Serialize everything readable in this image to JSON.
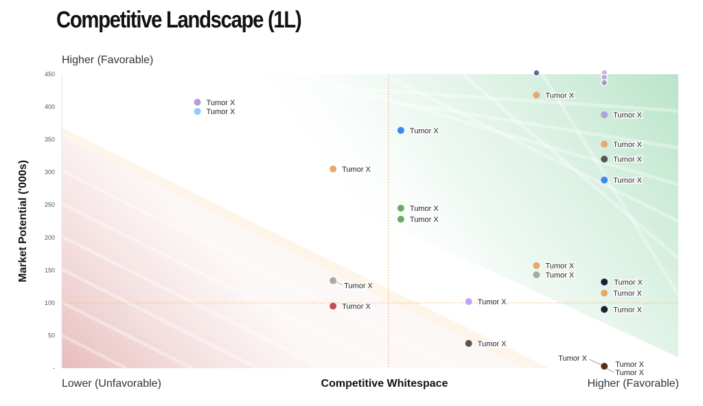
{
  "chart_data": {
    "type": "scatter",
    "title": "Competitive Landscape (1L)",
    "ylabel": "Market Potential ('000s)",
    "xlabel": "Competitive Whitespace",
    "y_top_label": "Higher (Favorable)",
    "x_left_label": "Lower (Unfavorable)",
    "x_right_label": "Higher (Favorable)",
    "ylim": [
      0,
      450
    ],
    "yticks": [
      50,
      100,
      150,
      200,
      250,
      300,
      350,
      400,
      450
    ],
    "ytick_labels": [
      "50",
      "100",
      "150",
      "200",
      "250",
      "300",
      "350",
      "400",
      "450"
    ],
    "y_min_label": "-",
    "xlim": [
      0,
      10
    ],
    "reference_lines": {
      "x": 5.3,
      "y": 100
    },
    "grid": false,
    "points": [
      {
        "x": 2.2,
        "y": 407,
        "label": "Tumor X",
        "color": "#b39ddb"
      },
      {
        "x": 2.2,
        "y": 393,
        "label": "Tumor X",
        "color": "#90caf9"
      },
      {
        "x": 4.4,
        "y": 305,
        "label": "Tumor X",
        "color": "#e8a86a"
      },
      {
        "x": 5.5,
        "y": 364,
        "label": "Tumor X",
        "color": "#4285f4"
      },
      {
        "x": 5.5,
        "y": 245,
        "label": "Tumor X",
        "color": "#6aaa64"
      },
      {
        "x": 5.5,
        "y": 228,
        "label": "Tumor X",
        "color": "#6aaa64"
      },
      {
        "x": 4.4,
        "y": 134,
        "label": "Tumor X",
        "color": "#a9a9a9"
      },
      {
        "x": 4.4,
        "y": 95,
        "label": "Tumor X",
        "color": "#c0504d"
      },
      {
        "x": 6.6,
        "y": 102,
        "label": "Tumor X",
        "color": "#c4a3f0"
      },
      {
        "x": 6.6,
        "y": 38,
        "label": "Tumor X",
        "color": "#555555"
      },
      {
        "x": 7.7,
        "y": 418,
        "label": "Tumor X",
        "color": "#e8a86a"
      },
      {
        "x": 7.7,
        "y": 157,
        "label": "Tumor X",
        "color": "#e8a86a"
      },
      {
        "x": 7.7,
        "y": 143,
        "label": "Tumor X",
        "color": "#a9a9a9"
      },
      {
        "x": 7.7,
        "y": 452,
        "label": "",
        "color": "#5b6b9b"
      },
      {
        "x": 8.8,
        "y": 452,
        "label": "",
        "color": "#c4b3e6"
      },
      {
        "x": 8.8,
        "y": 445,
        "label": "",
        "color": "#b8a8dc"
      },
      {
        "x": 8.8,
        "y": 437,
        "label": "",
        "color": "#a898cc"
      },
      {
        "x": 8.8,
        "y": 388,
        "label": "Tumor X",
        "color": "#b39ddb"
      },
      {
        "x": 8.8,
        "y": 343,
        "label": "Tumor X",
        "color": "#e8a86a"
      },
      {
        "x": 8.8,
        "y": 320,
        "label": "Tumor X",
        "color": "#555555"
      },
      {
        "x": 8.8,
        "y": 288,
        "label": "Tumor X",
        "color": "#4285f4"
      },
      {
        "x": 8.8,
        "y": 132,
        "label": "Tumor X",
        "color": "#1c2033"
      },
      {
        "x": 8.8,
        "y": 115,
        "label": "Tumor X",
        "color": "#e8a86a"
      },
      {
        "x": 8.8,
        "y": 90,
        "label": "Tumor X",
        "color": "#1c2033"
      },
      {
        "x": 8.8,
        "y": 3,
        "label": "Tumor X",
        "color": "#5a2d10"
      }
    ],
    "extra_labels": [
      "Tumor X",
      "Tumor X"
    ]
  }
}
